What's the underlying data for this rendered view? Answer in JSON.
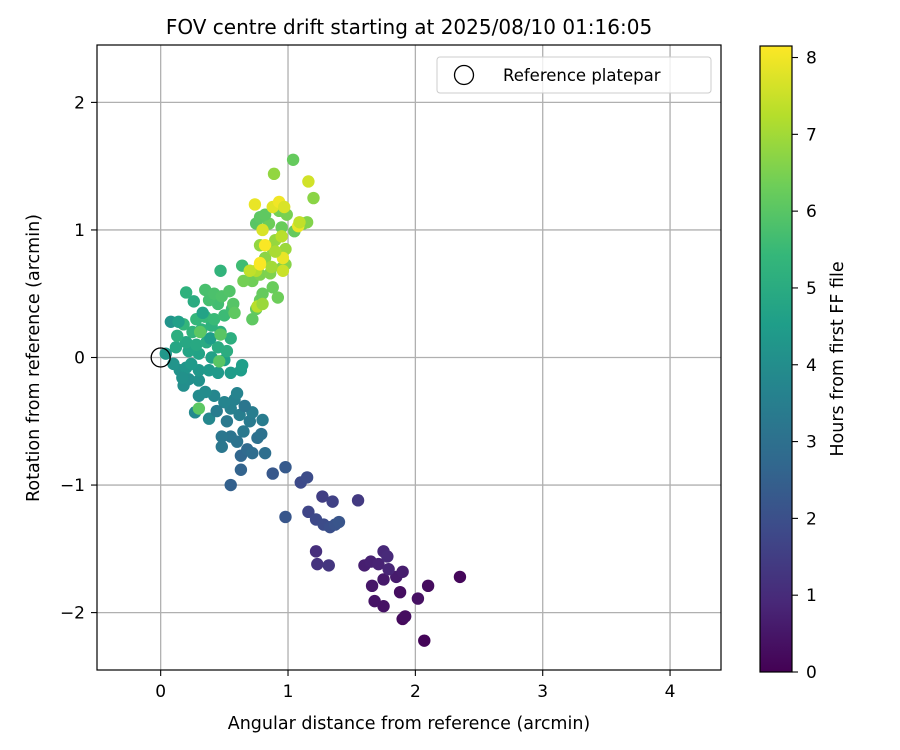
{
  "chart_data": {
    "type": "scatter",
    "title": "FOV centre drift starting at 2025/08/10 01:16:05",
    "xlabel": "Angular distance from reference (arcmin)",
    "ylabel": "Rotation from reference (arcmin)",
    "xlim": [
      -0.5,
      4.4
    ],
    "ylim": [
      -2.45,
      2.45
    ],
    "xticks": [
      0,
      1,
      2,
      3,
      4
    ],
    "xtick_labels": [
      "0",
      "1",
      "2",
      "3",
      "4"
    ],
    "yticks": [
      -2,
      -1,
      0,
      1,
      2
    ],
    "ytick_labels": [
      "−2",
      "−1",
      "0",
      "1",
      "2"
    ],
    "grid": true,
    "legend": {
      "position": "top-right",
      "label": "Reference platepar",
      "marker": "open-circle"
    },
    "reference_point": {
      "x": 0,
      "y": 0
    },
    "colorbar": {
      "label": "Hours from first FF file",
      "colormap": "viridis",
      "range": [
        0,
        8.15
      ],
      "ticks": [
        0,
        1,
        2,
        3,
        4,
        5,
        6,
        7,
        8
      ],
      "tick_labels": [
        "0",
        "1",
        "2",
        "3",
        "4",
        "5",
        "6",
        "7",
        "8"
      ]
    },
    "colors": {
      "viridis": [
        "#440154",
        "#482878",
        "#3e4989",
        "#31688e",
        "#26828e",
        "#1f9e89",
        "#35b779",
        "#6ece58",
        "#b5de2b",
        "#fde725"
      ]
    },
    "points": [
      {
        "x": 2.07,
        "y": -2.22,
        "t": 0.1
      },
      {
        "x": 1.9,
        "y": -2.05,
        "t": 0.2
      },
      {
        "x": 1.92,
        "y": -2.03,
        "t": 0.3
      },
      {
        "x": 2.35,
        "y": -1.72,
        "t": 0.15
      },
      {
        "x": 2.1,
        "y": -1.79,
        "t": 0.25
      },
      {
        "x": 2.02,
        "y": -1.89,
        "t": 0.35
      },
      {
        "x": 1.75,
        "y": -1.95,
        "t": 0.4
      },
      {
        "x": 1.68,
        "y": -1.91,
        "t": 0.45
      },
      {
        "x": 1.66,
        "y": -1.79,
        "t": 0.5
      },
      {
        "x": 1.75,
        "y": -1.74,
        "t": 0.55
      },
      {
        "x": 1.85,
        "y": -1.72,
        "t": 0.6
      },
      {
        "x": 1.9,
        "y": -1.68,
        "t": 0.65
      },
      {
        "x": 1.88,
        "y": -1.84,
        "t": 0.3
      },
      {
        "x": 1.6,
        "y": -1.63,
        "t": 0.7
      },
      {
        "x": 1.65,
        "y": -1.6,
        "t": 0.75
      },
      {
        "x": 1.71,
        "y": -1.62,
        "t": 0.8
      },
      {
        "x": 1.75,
        "y": -1.52,
        "t": 0.9
      },
      {
        "x": 1.78,
        "y": -1.56,
        "t": 0.95
      },
      {
        "x": 1.79,
        "y": -1.66,
        "t": 0.85
      },
      {
        "x": 1.22,
        "y": -1.52,
        "t": 1.1
      },
      {
        "x": 1.23,
        "y": -1.62,
        "t": 1.2
      },
      {
        "x": 1.32,
        "y": -1.63,
        "t": 1.3
      },
      {
        "x": 1.55,
        "y": -1.12,
        "t": 1.4
      },
      {
        "x": 1.27,
        "y": -1.09,
        "t": 1.5
      },
      {
        "x": 1.35,
        "y": -1.13,
        "t": 1.6
      },
      {
        "x": 1.16,
        "y": -1.21,
        "t": 1.7
      },
      {
        "x": 1.22,
        "y": -1.27,
        "t": 1.8
      },
      {
        "x": 1.28,
        "y": -1.31,
        "t": 1.9
      },
      {
        "x": 1.33,
        "y": -1.33,
        "t": 2.0
      },
      {
        "x": 1.37,
        "y": -1.31,
        "t": 2.1
      },
      {
        "x": 1.4,
        "y": -1.29,
        "t": 2.15
      },
      {
        "x": 0.98,
        "y": -1.25,
        "t": 2.2
      },
      {
        "x": 1.1,
        "y": -0.98,
        "t": 1.85
      },
      {
        "x": 1.15,
        "y": -0.94,
        "t": 1.9
      },
      {
        "x": 0.88,
        "y": -0.91,
        "t": 2.25
      },
      {
        "x": 0.98,
        "y": -0.86,
        "t": 2.3
      },
      {
        "x": 0.55,
        "y": -1.0,
        "t": 2.5
      },
      {
        "x": 0.63,
        "y": -0.88,
        "t": 2.6
      },
      {
        "x": 0.63,
        "y": -0.77,
        "t": 2.7
      },
      {
        "x": 0.68,
        "y": -0.72,
        "t": 2.8
      },
      {
        "x": 0.72,
        "y": -0.75,
        "t": 2.9
      },
      {
        "x": 0.82,
        "y": -0.75,
        "t": 2.95
      },
      {
        "x": 0.76,
        "y": -0.63,
        "t": 3.0
      },
      {
        "x": 0.79,
        "y": -0.6,
        "t": 3.05
      },
      {
        "x": 0.6,
        "y": -0.66,
        "t": 3.1
      },
      {
        "x": 0.55,
        "y": -0.62,
        "t": 3.15
      },
      {
        "x": 0.48,
        "y": -0.62,
        "t": 3.2
      },
      {
        "x": 0.48,
        "y": -0.7,
        "t": 3.25
      },
      {
        "x": 0.65,
        "y": -0.58,
        "t": 3.3
      },
      {
        "x": 0.7,
        "y": -0.5,
        "t": 3.35
      },
      {
        "x": 0.8,
        "y": -0.49,
        "t": 3.4
      },
      {
        "x": 0.72,
        "y": -0.43,
        "t": 3.45
      },
      {
        "x": 0.62,
        "y": -0.45,
        "t": 3.5
      },
      {
        "x": 0.55,
        "y": -0.4,
        "t": 3.55
      },
      {
        "x": 0.58,
        "y": -0.33,
        "t": 3.6
      },
      {
        "x": 0.6,
        "y": -0.28,
        "t": 3.65
      },
      {
        "x": 0.5,
        "y": -0.35,
        "t": 3.7
      },
      {
        "x": 0.42,
        "y": -0.3,
        "t": 3.75
      },
      {
        "x": 0.38,
        "y": -0.48,
        "t": 3.8
      },
      {
        "x": 0.27,
        "y": -0.43,
        "t": 3.85
      },
      {
        "x": 0.3,
        "y": -0.3,
        "t": 3.9
      },
      {
        "x": 0.35,
        "y": -0.27,
        "t": 3.95
      },
      {
        "x": 0.44,
        "y": -0.42,
        "t": 3.4
      },
      {
        "x": 0.52,
        "y": -0.5,
        "t": 3.3
      },
      {
        "x": 0.66,
        "y": -0.38,
        "t": 3.2
      },
      {
        "x": 0.18,
        "y": -0.22,
        "t": 4.0
      },
      {
        "x": 0.22,
        "y": -0.17,
        "t": 4.05
      },
      {
        "x": 0.3,
        "y": -0.18,
        "t": 4.1
      },
      {
        "x": 0.15,
        "y": -0.1,
        "t": 4.15
      },
      {
        "x": 0.1,
        "y": -0.05,
        "t": 4.2
      },
      {
        "x": 0.2,
        "y": -0.08,
        "t": 4.25
      },
      {
        "x": 0.3,
        "y": -0.1,
        "t": 4.3
      },
      {
        "x": 0.38,
        "y": -0.1,
        "t": 4.35
      },
      {
        "x": 0.45,
        "y": -0.12,
        "t": 4.4
      },
      {
        "x": 0.55,
        "y": -0.12,
        "t": 4.45
      },
      {
        "x": 0.63,
        "y": -0.1,
        "t": 4.5
      },
      {
        "x": 0.64,
        "y": -0.06,
        "t": 4.55
      },
      {
        "x": 0.5,
        "y": -0.02,
        "t": 4.6
      },
      {
        "x": 0.4,
        "y": 0.0,
        "t": 4.65
      },
      {
        "x": 0.3,
        "y": 0.03,
        "t": 4.7
      },
      {
        "x": 0.22,
        "y": 0.05,
        "t": 4.75
      },
      {
        "x": 0.12,
        "y": 0.08,
        "t": 4.8
      },
      {
        "x": 0.2,
        "y": 0.12,
        "t": 4.85
      },
      {
        "x": 0.28,
        "y": 0.1,
        "t": 4.9
      },
      {
        "x": 0.36,
        "y": 0.12,
        "t": 4.95
      },
      {
        "x": 0.45,
        "y": 0.08,
        "t": 5.0
      },
      {
        "x": 0.52,
        "y": 0.05,
        "t": 5.05
      },
      {
        "x": 0.55,
        "y": 0.15,
        "t": 5.1
      },
      {
        "x": 0.47,
        "y": 0.2,
        "t": 5.15
      },
      {
        "x": 0.4,
        "y": 0.25,
        "t": 5.2
      },
      {
        "x": 0.32,
        "y": 0.22,
        "t": 5.25
      },
      {
        "x": 0.25,
        "y": 0.2,
        "t": 5.3
      },
      {
        "x": 0.18,
        "y": 0.26,
        "t": 5.35
      },
      {
        "x": 0.08,
        "y": 0.28,
        "t": 4.2
      },
      {
        "x": 0.14,
        "y": 0.28,
        "t": 4.6
      },
      {
        "x": 0.28,
        "y": 0.3,
        "t": 5.4
      },
      {
        "x": 0.35,
        "y": 0.32,
        "t": 5.45
      },
      {
        "x": 0.42,
        "y": 0.3,
        "t": 5.5
      },
      {
        "x": 0.5,
        "y": 0.33,
        "t": 5.55
      },
      {
        "x": 0.56,
        "y": 0.38,
        "t": 5.6
      },
      {
        "x": 0.45,
        "y": 0.42,
        "t": 5.65
      },
      {
        "x": 0.38,
        "y": 0.45,
        "t": 5.7
      },
      {
        "x": 0.35,
        "y": 0.53,
        "t": 5.75
      },
      {
        "x": 0.42,
        "y": 0.5,
        "t": 5.8
      },
      {
        "x": 0.48,
        "y": 0.48,
        "t": 5.85
      },
      {
        "x": 0.54,
        "y": 0.52,
        "t": 5.9
      },
      {
        "x": 0.57,
        "y": 0.42,
        "t": 5.95
      },
      {
        "x": 0.26,
        "y": 0.44,
        "t": 5.0
      },
      {
        "x": 0.2,
        "y": 0.51,
        "t": 5.2
      },
      {
        "x": 0.47,
        "y": 0.68,
        "t": 5.3
      },
      {
        "x": 0.64,
        "y": 0.72,
        "t": 5.6
      },
      {
        "x": 0.33,
        "y": 0.35,
        "t": 4.7
      },
      {
        "x": 0.39,
        "y": 0.15,
        "t": 4.5
      },
      {
        "x": 0.24,
        "y": -0.05,
        "t": 4.4
      },
      {
        "x": 0.17,
        "y": -0.16,
        "t": 4.1
      },
      {
        "x": 0.04,
        "y": 0.03,
        "t": 4.3
      },
      {
        "x": 0.13,
        "y": 0.17,
        "t": 5.1
      },
      {
        "x": 0.47,
        "y": 0.18,
        "t": 6.0
      },
      {
        "x": 0.46,
        "y": -0.03,
        "t": 6.0
      },
      {
        "x": 0.31,
        "y": 0.2,
        "t": 6.05
      },
      {
        "x": 0.3,
        "y": -0.4,
        "t": 6.05
      },
      {
        "x": 0.58,
        "y": 0.35,
        "t": 6.1
      },
      {
        "x": 0.72,
        "y": 0.3,
        "t": 6.1
      },
      {
        "x": 0.75,
        "y": 0.38,
        "t": 6.15
      },
      {
        "x": 0.78,
        "y": 0.45,
        "t": 6.2
      },
      {
        "x": 0.8,
        "y": 0.5,
        "t": 6.2
      },
      {
        "x": 0.88,
        "y": 0.55,
        "t": 6.25
      },
      {
        "x": 0.92,
        "y": 0.47,
        "t": 6.3
      },
      {
        "x": 0.72,
        "y": 0.6,
        "t": 6.35
      },
      {
        "x": 0.65,
        "y": 0.6,
        "t": 6.4
      },
      {
        "x": 0.7,
        "y": 0.68,
        "t": 6.45
      },
      {
        "x": 0.78,
        "y": 0.65,
        "t": 6.5
      },
      {
        "x": 0.86,
        "y": 0.66,
        "t": 6.55
      },
      {
        "x": 0.95,
        "y": 0.7,
        "t": 6.6
      },
      {
        "x": 0.98,
        "y": 0.73,
        "t": 6.65
      },
      {
        "x": 0.82,
        "y": 0.78,
        "t": 6.7
      },
      {
        "x": 0.88,
        "y": 0.85,
        "t": 6.75
      },
      {
        "x": 0.78,
        "y": 0.88,
        "t": 6.8
      },
      {
        "x": 0.9,
        "y": 0.92,
        "t": 6.85
      },
      {
        "x": 0.98,
        "y": 0.85,
        "t": 6.9
      },
      {
        "x": 1.05,
        "y": 0.99,
        "t": 6.2
      },
      {
        "x": 0.95,
        "y": 1.02,
        "t": 6.25
      },
      {
        "x": 0.85,
        "y": 1.05,
        "t": 6.3
      },
      {
        "x": 0.75,
        "y": 1.05,
        "t": 6.0
      },
      {
        "x": 0.78,
        "y": 1.1,
        "t": 6.05
      },
      {
        "x": 0.82,
        "y": 1.12,
        "t": 6.1
      },
      {
        "x": 0.93,
        "y": 1.15,
        "t": 6.4
      },
      {
        "x": 0.99,
        "y": 1.12,
        "t": 6.45
      },
      {
        "x": 1.12,
        "y": 1.05,
        "t": 6.5
      },
      {
        "x": 1.15,
        "y": 1.06,
        "t": 6.6
      },
      {
        "x": 1.2,
        "y": 1.25,
        "t": 6.7
      },
      {
        "x": 1.04,
        "y": 1.55,
        "t": 6.2
      },
      {
        "x": 0.89,
        "y": 1.44,
        "t": 6.8
      },
      {
        "x": 1.16,
        "y": 1.38,
        "t": 7.6
      },
      {
        "x": 0.74,
        "y": 1.2,
        "t": 7.9
      },
      {
        "x": 0.88,
        "y": 1.18,
        "t": 7.8
      },
      {
        "x": 0.93,
        "y": 1.22,
        "t": 8.0
      },
      {
        "x": 0.97,
        "y": 1.18,
        "t": 7.7
      },
      {
        "x": 1.08,
        "y": 1.03,
        "t": 7.9
      },
      {
        "x": 0.8,
        "y": 1.0,
        "t": 7.7
      },
      {
        "x": 0.82,
        "y": 0.88,
        "t": 8.1
      },
      {
        "x": 0.78,
        "y": 0.74,
        "t": 8.1
      },
      {
        "x": 0.96,
        "y": 0.78,
        "t": 7.9
      },
      {
        "x": 0.96,
        "y": 0.68,
        "t": 7.5
      },
      {
        "x": 0.75,
        "y": 0.68,
        "t": 7.2
      },
      {
        "x": 0.87,
        "y": 0.71,
        "t": 7.0
      },
      {
        "x": 0.7,
        "y": 0.68,
        "t": 7.4
      },
      {
        "x": 0.76,
        "y": 0.4,
        "t": 7.3
      },
      {
        "x": 0.8,
        "y": 0.42,
        "t": 6.9
      },
      {
        "x": 0.9,
        "y": 0.83,
        "t": 7.1
      },
      {
        "x": 0.95,
        "y": 0.95,
        "t": 7.3
      },
      {
        "x": 1.09,
        "y": 1.06,
        "t": 7.4
      },
      {
        "x": 0.78,
        "y": 0.73,
        "t": 8.1
      }
    ]
  }
}
